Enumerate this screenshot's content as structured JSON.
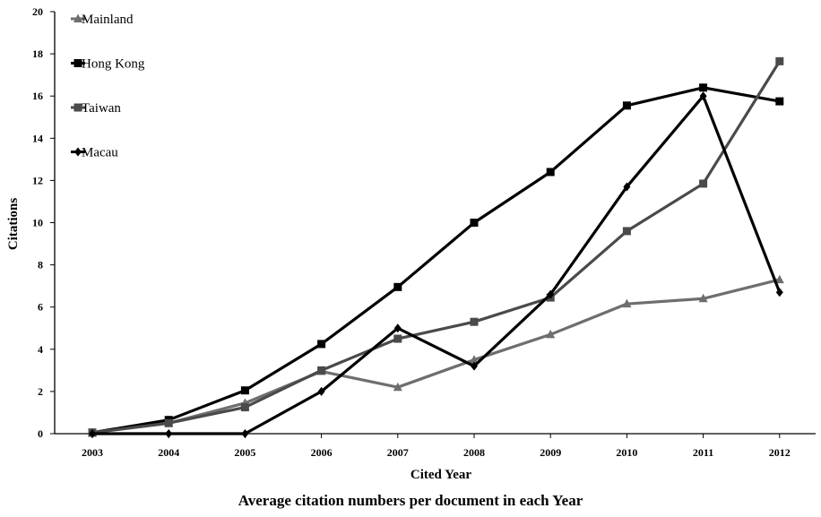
{
  "caption": "Average citation numbers per document in each Year",
  "chart_data": {
    "type": "line",
    "title": "",
    "xlabel": "Cited Year",
    "ylabel": "Citations",
    "categories": [
      "2003",
      "2004",
      "2005",
      "2006",
      "2007",
      "2008",
      "2009",
      "2010",
      "2011",
      "2012"
    ],
    "ylim": [
      0,
      20
    ],
    "yticks": [
      0,
      2,
      4,
      6,
      8,
      10,
      12,
      14,
      16,
      18,
      20
    ],
    "grid": false,
    "legend": "top-left",
    "series": [
      {
        "name": "Mainland",
        "marker": "triangle",
        "color": "#6e6e6e",
        "values": [
          0.05,
          0.5,
          1.45,
          2.95,
          2.2,
          3.5,
          4.7,
          6.15,
          6.4,
          7.3
        ]
      },
      {
        "name": "Hong Kong",
        "marker": "square",
        "color": "#000000",
        "values": [
          0.05,
          0.65,
          2.05,
          4.25,
          6.95,
          10.0,
          12.4,
          15.55,
          16.4,
          15.75
        ]
      },
      {
        "name": "Taiwan",
        "marker": "square",
        "color": "#4a4a4a",
        "values": [
          0.05,
          0.5,
          1.25,
          3.0,
          4.5,
          5.3,
          6.45,
          9.6,
          11.85,
          17.65
        ]
      },
      {
        "name": "Macau",
        "marker": "diamond",
        "color": "#000000",
        "values": [
          0,
          0,
          0,
          2.0,
          5.0,
          3.2,
          6.6,
          11.7,
          16.0,
          6.7
        ]
      }
    ]
  }
}
